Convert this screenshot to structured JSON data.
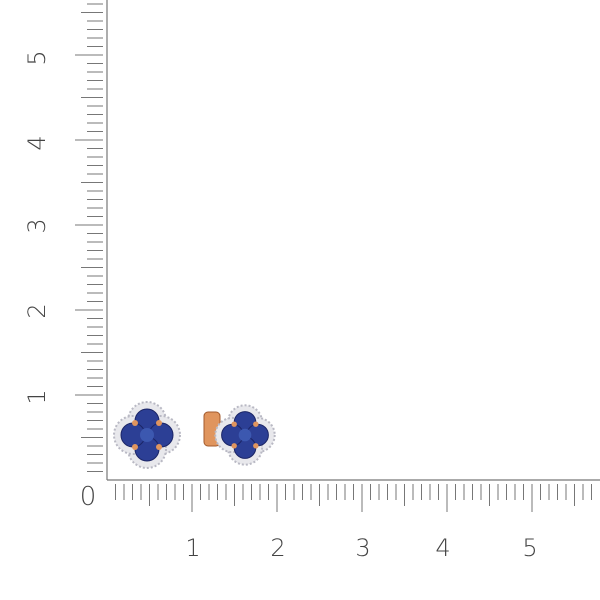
{
  "ruler": {
    "x_labels": [
      "0",
      "1",
      "2",
      "3",
      "4",
      "5"
    ],
    "y_labels": [
      "1",
      "2",
      "3",
      "4",
      "5"
    ],
    "ticks_per_unit": 10,
    "tick_color": "#777777"
  },
  "product": {
    "stone_color": "#2c3f95",
    "metal_color": "#e0955e",
    "diamond_color": "#e8e8ec"
  }
}
